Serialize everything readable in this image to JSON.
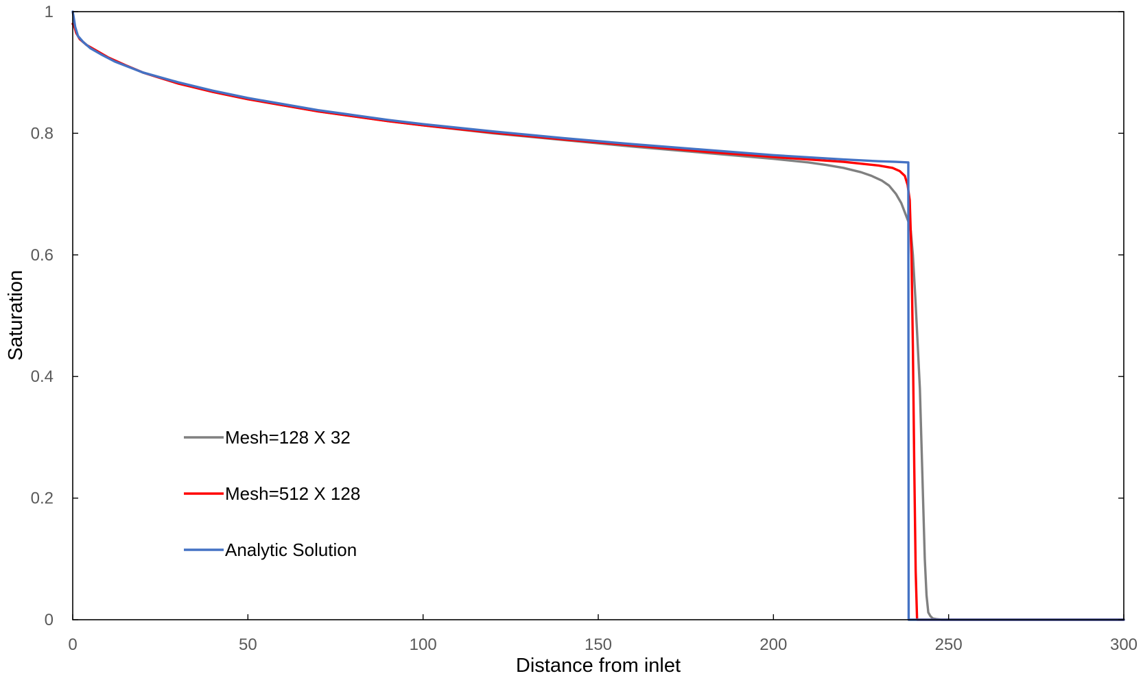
{
  "chart_data": {
    "type": "line",
    "title": "",
    "xlabel": "Distance from inlet",
    "ylabel": "Saturation",
    "xlim": [
      0,
      300
    ],
    "ylim": [
      0,
      1
    ],
    "x_ticks": [
      0,
      50,
      100,
      150,
      200,
      250,
      300
    ],
    "y_ticks": [
      0,
      0.2,
      0.4,
      0.6,
      0.8,
      1
    ],
    "x_tick_labels": [
      "0",
      "50",
      "100",
      "150",
      "200",
      "250",
      "300"
    ],
    "y_tick_labels": [
      "0",
      "0.2",
      "0.4",
      "0.6",
      "0.8",
      "1"
    ],
    "grid": false,
    "legend_position": "left",
    "series": [
      {
        "name": "Mesh=128 X 32",
        "color": "#808080",
        "x": [
          0,
          0.5,
          1,
          2,
          4,
          7,
          10,
          15,
          20,
          30,
          40,
          50,
          60,
          70,
          80,
          90,
          100,
          120,
          140,
          160,
          180,
          200,
          210,
          215,
          220,
          225,
          228,
          231,
          233,
          235,
          236.5,
          237.5,
          238.5,
          239.2,
          239.8,
          240.5,
          241.2,
          241.8,
          242.3,
          242.8,
          243.2,
          243.7,
          244.2,
          244.8,
          245.5,
          246.5,
          248,
          250,
          260,
          300
        ],
        "y": [
          0.98,
          0.975,
          0.965,
          0.955,
          0.945,
          0.935,
          0.925,
          0.912,
          0.9,
          0.882,
          0.868,
          0.856,
          0.846,
          0.836,
          0.828,
          0.82,
          0.813,
          0.8,
          0.789,
          0.778,
          0.768,
          0.758,
          0.752,
          0.748,
          0.743,
          0.736,
          0.73,
          0.722,
          0.714,
          0.7,
          0.685,
          0.67,
          0.655,
          0.64,
          0.6,
          0.53,
          0.45,
          0.38,
          0.28,
          0.18,
          0.1,
          0.04,
          0.012,
          0.006,
          0.002,
          0.001,
          0,
          0,
          0,
          0
        ]
      },
      {
        "name": "Mesh=512 X 128",
        "color": "#ff0000",
        "x": [
          0,
          0.5,
          1,
          2,
          4,
          7,
          10,
          15,
          20,
          30,
          40,
          50,
          60,
          70,
          80,
          90,
          100,
          120,
          140,
          160,
          180,
          200,
          210,
          220,
          230,
          234,
          236,
          237.5,
          238.3,
          238.9,
          239.4,
          239.8,
          240.2,
          240.6,
          241,
          245,
          260,
          300
        ],
        "y": [
          0.98,
          0.975,
          0.965,
          0.955,
          0.945,
          0.935,
          0.925,
          0.912,
          0.9,
          0.882,
          0.868,
          0.856,
          0.846,
          0.836,
          0.828,
          0.82,
          0.813,
          0.801,
          0.79,
          0.78,
          0.77,
          0.761,
          0.757,
          0.753,
          0.747,
          0.743,
          0.738,
          0.73,
          0.715,
          0.69,
          0.6,
          0.45,
          0.25,
          0.08,
          0,
          0,
          0,
          0
        ]
      },
      {
        "name": "Analytic Solution",
        "color": "#4472c4",
        "x": [
          0,
          0.3,
          0.7,
          1.5,
          3,
          5,
          8,
          12,
          20,
          30,
          40,
          50,
          60,
          70,
          80,
          90,
          100,
          120,
          140,
          160,
          180,
          200,
          220,
          230,
          235,
          238.5,
          238.6,
          240,
          260,
          300
        ],
        "y": [
          1,
          0.99,
          0.975,
          0.96,
          0.95,
          0.94,
          0.93,
          0.918,
          0.9,
          0.884,
          0.87,
          0.858,
          0.848,
          0.838,
          0.83,
          0.822,
          0.815,
          0.803,
          0.792,
          0.782,
          0.773,
          0.764,
          0.757,
          0.754,
          0.753,
          0.752,
          0,
          0,
          0,
          0
        ]
      }
    ]
  }
}
